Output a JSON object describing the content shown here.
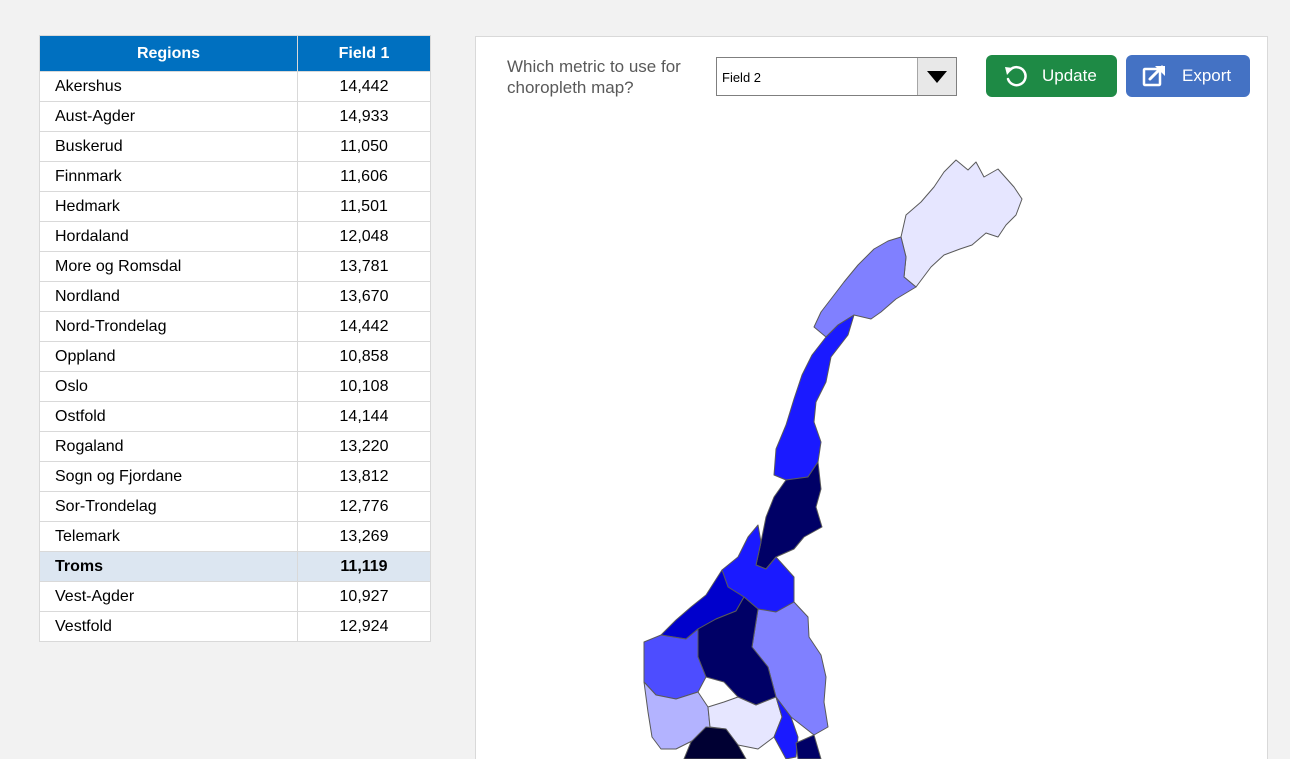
{
  "table": {
    "headers": {
      "region": "Regions",
      "value": "Field 1"
    },
    "rows": [
      {
        "region": "Akershus",
        "value": "14,442"
      },
      {
        "region": "Aust-Agder",
        "value": "14,933"
      },
      {
        "region": "Buskerud",
        "value": "11,050"
      },
      {
        "region": "Finnmark",
        "value": "11,606"
      },
      {
        "region": "Hedmark",
        "value": "11,501"
      },
      {
        "region": "Hordaland",
        "value": "12,048"
      },
      {
        "region": "More og Romsdal",
        "value": "13,781"
      },
      {
        "region": "Nordland",
        "value": "13,670"
      },
      {
        "region": "Nord-Trondelag",
        "value": "14,442"
      },
      {
        "region": "Oppland",
        "value": "10,858"
      },
      {
        "region": "Oslo",
        "value": "10,108"
      },
      {
        "region": "Ostfold",
        "value": "14,144"
      },
      {
        "region": "Rogaland",
        "value": "13,220"
      },
      {
        "region": "Sogn og Fjordane",
        "value": "13,812"
      },
      {
        "region": "Sor-Trondelag",
        "value": "12,776"
      },
      {
        "region": "Telemark",
        "value": "13,269"
      },
      {
        "region": "Troms",
        "value": "11,119",
        "selected": true
      },
      {
        "region": "Vest-Agder",
        "value": "10,927"
      },
      {
        "region": "Vestfold",
        "value": "12,924"
      }
    ]
  },
  "controls": {
    "prompt": "Which metric to use for choropleth map?",
    "metric_select": {
      "selected": "Field 2",
      "icon": "chevron-down-icon"
    },
    "update_label": "Update",
    "update_icon": "refresh-icon",
    "export_label": "Export",
    "export_icon": "export-icon"
  },
  "colors": {
    "header_blue": "#0070c0",
    "selected_row": "#dce6f1",
    "update_green": "#1e8a45",
    "export_blue": "#4472c4",
    "map_shades": [
      "#e6e6ff",
      "#b3b3ff",
      "#8080ff",
      "#4d4dff",
      "#1a1aff",
      "#0000cc",
      "#000066",
      "#000033"
    ]
  },
  "map": {
    "regions": [
      {
        "name": "Finnmark",
        "fill": "#e6e6ff"
      },
      {
        "name": "Troms",
        "fill": "#8080ff"
      },
      {
        "name": "Nordland",
        "fill": "#1a1aff"
      },
      {
        "name": "Nord-Trondelag",
        "fill": "#000066"
      },
      {
        "name": "Sor-Trondelag",
        "fill": "#1a1aff"
      },
      {
        "name": "More og Romsdal",
        "fill": "#0000cc"
      },
      {
        "name": "Hedmark",
        "fill": "#8080ff"
      },
      {
        "name": "Oppland",
        "fill": "#000066"
      },
      {
        "name": "Sogn og Fjordane",
        "fill": "#4d4dff"
      },
      {
        "name": "Hordaland",
        "fill": "#b3b3ff"
      },
      {
        "name": "Buskerud",
        "fill": "#e6e6ff"
      },
      {
        "name": "Akershus",
        "fill": "#1a1aff"
      },
      {
        "name": "Telemark",
        "fill": "#000033"
      },
      {
        "name": "Oslo",
        "fill": "#000066"
      }
    ]
  }
}
